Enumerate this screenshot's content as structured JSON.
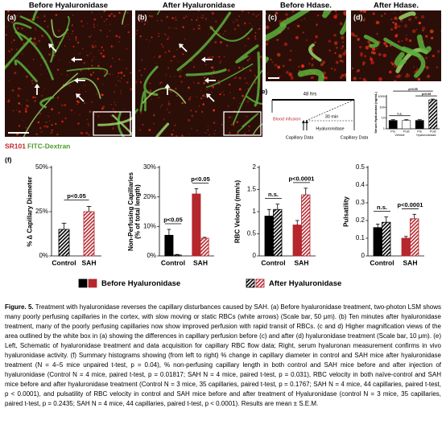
{
  "figure": {
    "images": [
      {
        "label": "(a)",
        "title": "Before Hyaluronidase"
      },
      {
        "label": "(b)",
        "title": "After Hyaluronidase"
      },
      {
        "label": "(c)",
        "title": "Before Hdase."
      },
      {
        "label": "(d)",
        "title": "After Hdase."
      }
    ],
    "stain_labels": [
      "SR101",
      "FITC-Dextran"
    ],
    "panel_e": {
      "label": "(e)",
      "timeline": {
        "duration_long": "48 hrs",
        "duration_short": "30 min",
        "events": [
          "Blood infusion",
          "Capillary Data",
          "Hyaluronidase",
          "Capillary Data"
        ]
      }
    },
    "panel_f": {
      "label": "(f)"
    },
    "caption": {
      "label": "Figure. 5.",
      "text": "Treatment with hyaluronidase reverses the capillary disturbances caused by SAH. (a) Before hyaluronidase treatment, two-photon LSM shows many poorly perfusing capillaries in the cortex, with slow moving or static RBCs (white arrows) (Scale bar, 50 μm). (b) Ten minutes after hyaluronidase treatment, many of the poorly perfusing capillaries now show improved perfusion with rapid transit of RBCs. (c and d) Higher magnification views of the area outlined by the white box in (a) showing the differences in capillary perfusion before (c) and after (d) hyaluronidase treatment (Scale bar, 10 μm). (e) Left, Schematic of hyaluronidase treatment and data acquisition for capillary RBC flow data; Right, serum hyaluronan measurement confirms in vivo hyaluronidase activity. (f) Summary histograms showing (from left to right) % change in capillary diameter in control and SAH mice after hyaluronidase treatment (N = 4–5 mice unpaired t-test, p = 0.04), % non-perfusing capillary length in both control and SAH mice before and after injection of hyaluronidase (Control N = 4 mice, paired t-test, p = 0.01817; SAH N = 4 mice, paired t-test, p = 0.031), RBC velocity in both naïve-control and SAH mice before and after hyaluronidase treatment (Control N = 3 mice, 35 capillaries, paired t-test, p = 0.1767; SAH N = 4 mice, 44 capillaries, paired t-test, p < 0.0001), and pulsatility of RBC velocity in control and SAH mice before and after treatment of Hyaluronidase (control N = 3 mice, 35 capillaries, paired t-test, p = 0.2435; SAH N = 4 mice, 44 capillaries, paired t-test, p < 0.0001). Results are mean ± S.E.M."
    }
  },
  "chart_data": [
    {
      "type": "bar",
      "ylabel": "% Δ Capillary Diameter",
      "categories": [
        "Control",
        "SAH"
      ],
      "category_colors": [
        "#000000",
        "#b5272d"
      ],
      "series": [
        {
          "name": "After Hyaluronidase",
          "hatch": true,
          "values": [
            15,
            25
          ],
          "errors": [
            3.5,
            3
          ]
        }
      ],
      "ylim": [
        0,
        50
      ],
      "yticks": [
        {
          "value": 0,
          "label": "0%"
        },
        {
          "value": 25,
          "label": "25%"
        },
        {
          "value": 50,
          "label": "50%"
        }
      ],
      "annotations": [
        "p<0.05"
      ]
    },
    {
      "type": "bar",
      "ylabel": [
        "Non-Perfusing Capillaries",
        "(% of total length)"
      ],
      "categories": [
        "Control",
        "SAH"
      ],
      "category_colors": [
        "#000000",
        "#b5272d"
      ],
      "series": [
        {
          "name": "Before Hyaluronidase",
          "hatch": false,
          "values": [
            7,
            21
          ],
          "errors": [
            2,
            1.8
          ]
        },
        {
          "name": "After Hyaluronidase",
          "hatch": true,
          "values": [
            0.3,
            6
          ],
          "errors": [
            0.2,
            0.3
          ]
        }
      ],
      "ylim": [
        0,
        30
      ],
      "yticks": [
        {
          "value": 0,
          "label": "0%"
        },
        {
          "value": 10,
          "label": "10%"
        },
        {
          "value": 20,
          "label": "20%"
        },
        {
          "value": 30,
          "label": "30%"
        }
      ],
      "annotations": [
        "p<0.05",
        "p<0.05"
      ]
    },
    {
      "type": "bar",
      "ylabel": "RBC Velocity (mm/s)",
      "categories": [
        "Control",
        "SAH"
      ],
      "category_colors": [
        "#000000",
        "#b5272d"
      ],
      "series": [
        {
          "name": "Before Hyaluronidase",
          "hatch": false,
          "values": [
            0.9,
            0.7
          ],
          "errors": [
            0.15,
            0.1
          ]
        },
        {
          "name": "After Hyaluronidase",
          "hatch": true,
          "values": [
            1.05,
            1.38
          ],
          "errors": [
            0.12,
            0.15
          ]
        }
      ],
      "ylim": [
        0,
        2
      ],
      "yticks": [
        0,
        0.5,
        1,
        1.5,
        2
      ],
      "annotations": [
        "n.s.",
        "p<0.0001"
      ]
    },
    {
      "type": "bar",
      "ylabel": "Pulsatility",
      "categories": [
        "Control",
        "SAH"
      ],
      "category_colors": [
        "#000000",
        "#b5272d"
      ],
      "series": [
        {
          "name": "Before Hyaluronidase",
          "hatch": false,
          "values": [
            0.16,
            0.1
          ],
          "errors": [
            0.02,
            0.01
          ]
        },
        {
          "name": "After Hyaluronidase",
          "hatch": true,
          "values": [
            0.19,
            0.21
          ],
          "errors": [
            0.03,
            0.025
          ]
        }
      ],
      "ylim": [
        0,
        0.5
      ],
      "yticks": [
        0,
        0.1,
        0.2,
        0.3,
        0.4,
        0.5
      ],
      "annotations": [
        "n.s.",
        "p<0.0001"
      ]
    },
    {
      "type": "bar",
      "ylabel": "Serum Hyaluronan (ng/mL)",
      "categories": [
        "Pre",
        "Post",
        "Pre",
        "Post"
      ],
      "groups": [
        "Vehicle",
        "Hyaluronidase"
      ],
      "values": [
        6,
        6,
        6,
        500
      ],
      "errors": [
        1,
        1,
        1,
        80
      ],
      "colors": [
        "#000000",
        "#ffffff",
        "#000000",
        "#000000"
      ],
      "hatch": [
        false,
        false,
        false,
        true
      ],
      "log_scale": true,
      "ylim": [
        1,
        1000
      ],
      "yticks": [
        1,
        10,
        100,
        1000
      ],
      "annotations": [
        "n.s.",
        "p<0.05",
        "p<0.05"
      ]
    }
  ]
}
